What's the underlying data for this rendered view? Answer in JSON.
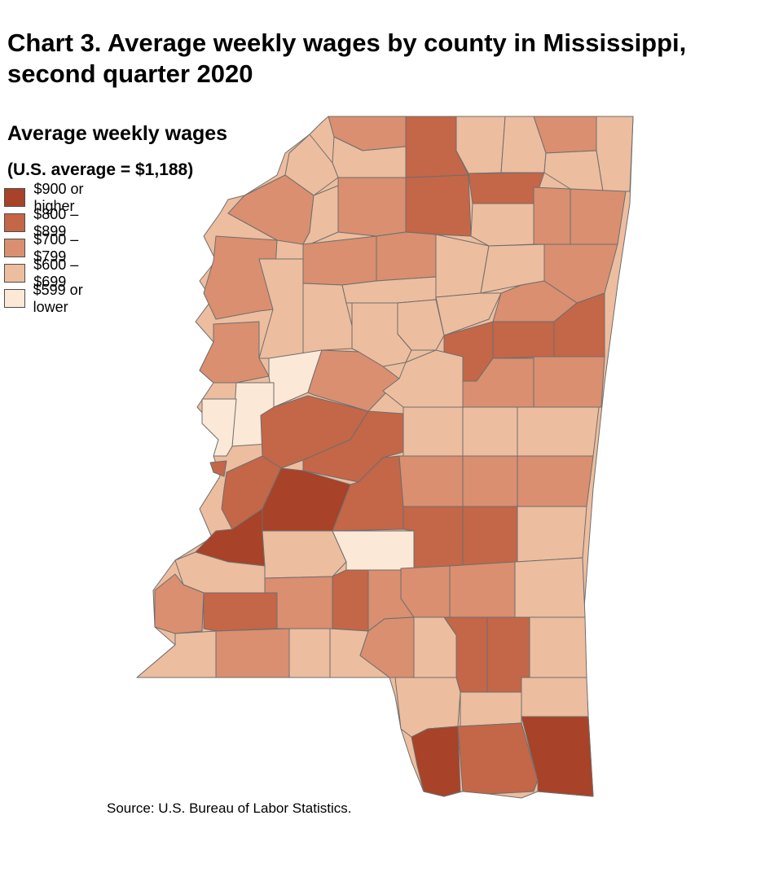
{
  "title": "Chart 3. Average weekly wages by county in Mississippi, second quarter 2020",
  "legend": {
    "heading": "Average weekly wages",
    "note": "(U.S. average = $1,188)",
    "classes": [
      {
        "label": "$900 or higher",
        "color": "#a84228"
      },
      {
        "label": "$800 – $899",
        "color": "#c46648"
      },
      {
        "label": "$700 – $799",
        "color": "#d98f70"
      },
      {
        "label": "$600 – $699",
        "color": "#edbd9f"
      },
      {
        "label": "$599 or lower",
        "color": "#fbe8d6"
      }
    ]
  },
  "source": "Source: U.S. Bureau of Labor Statistics.",
  "map": {
    "state": "Mississippi",
    "boundary_color": "#6e6e6e",
    "county_class_counts": {
      "$900 or higher": 5,
      "$800 – $899": 13,
      "$700 – $799": 25,
      "$600 – $699": 35,
      "$599 or lower": 4
    }
  }
}
